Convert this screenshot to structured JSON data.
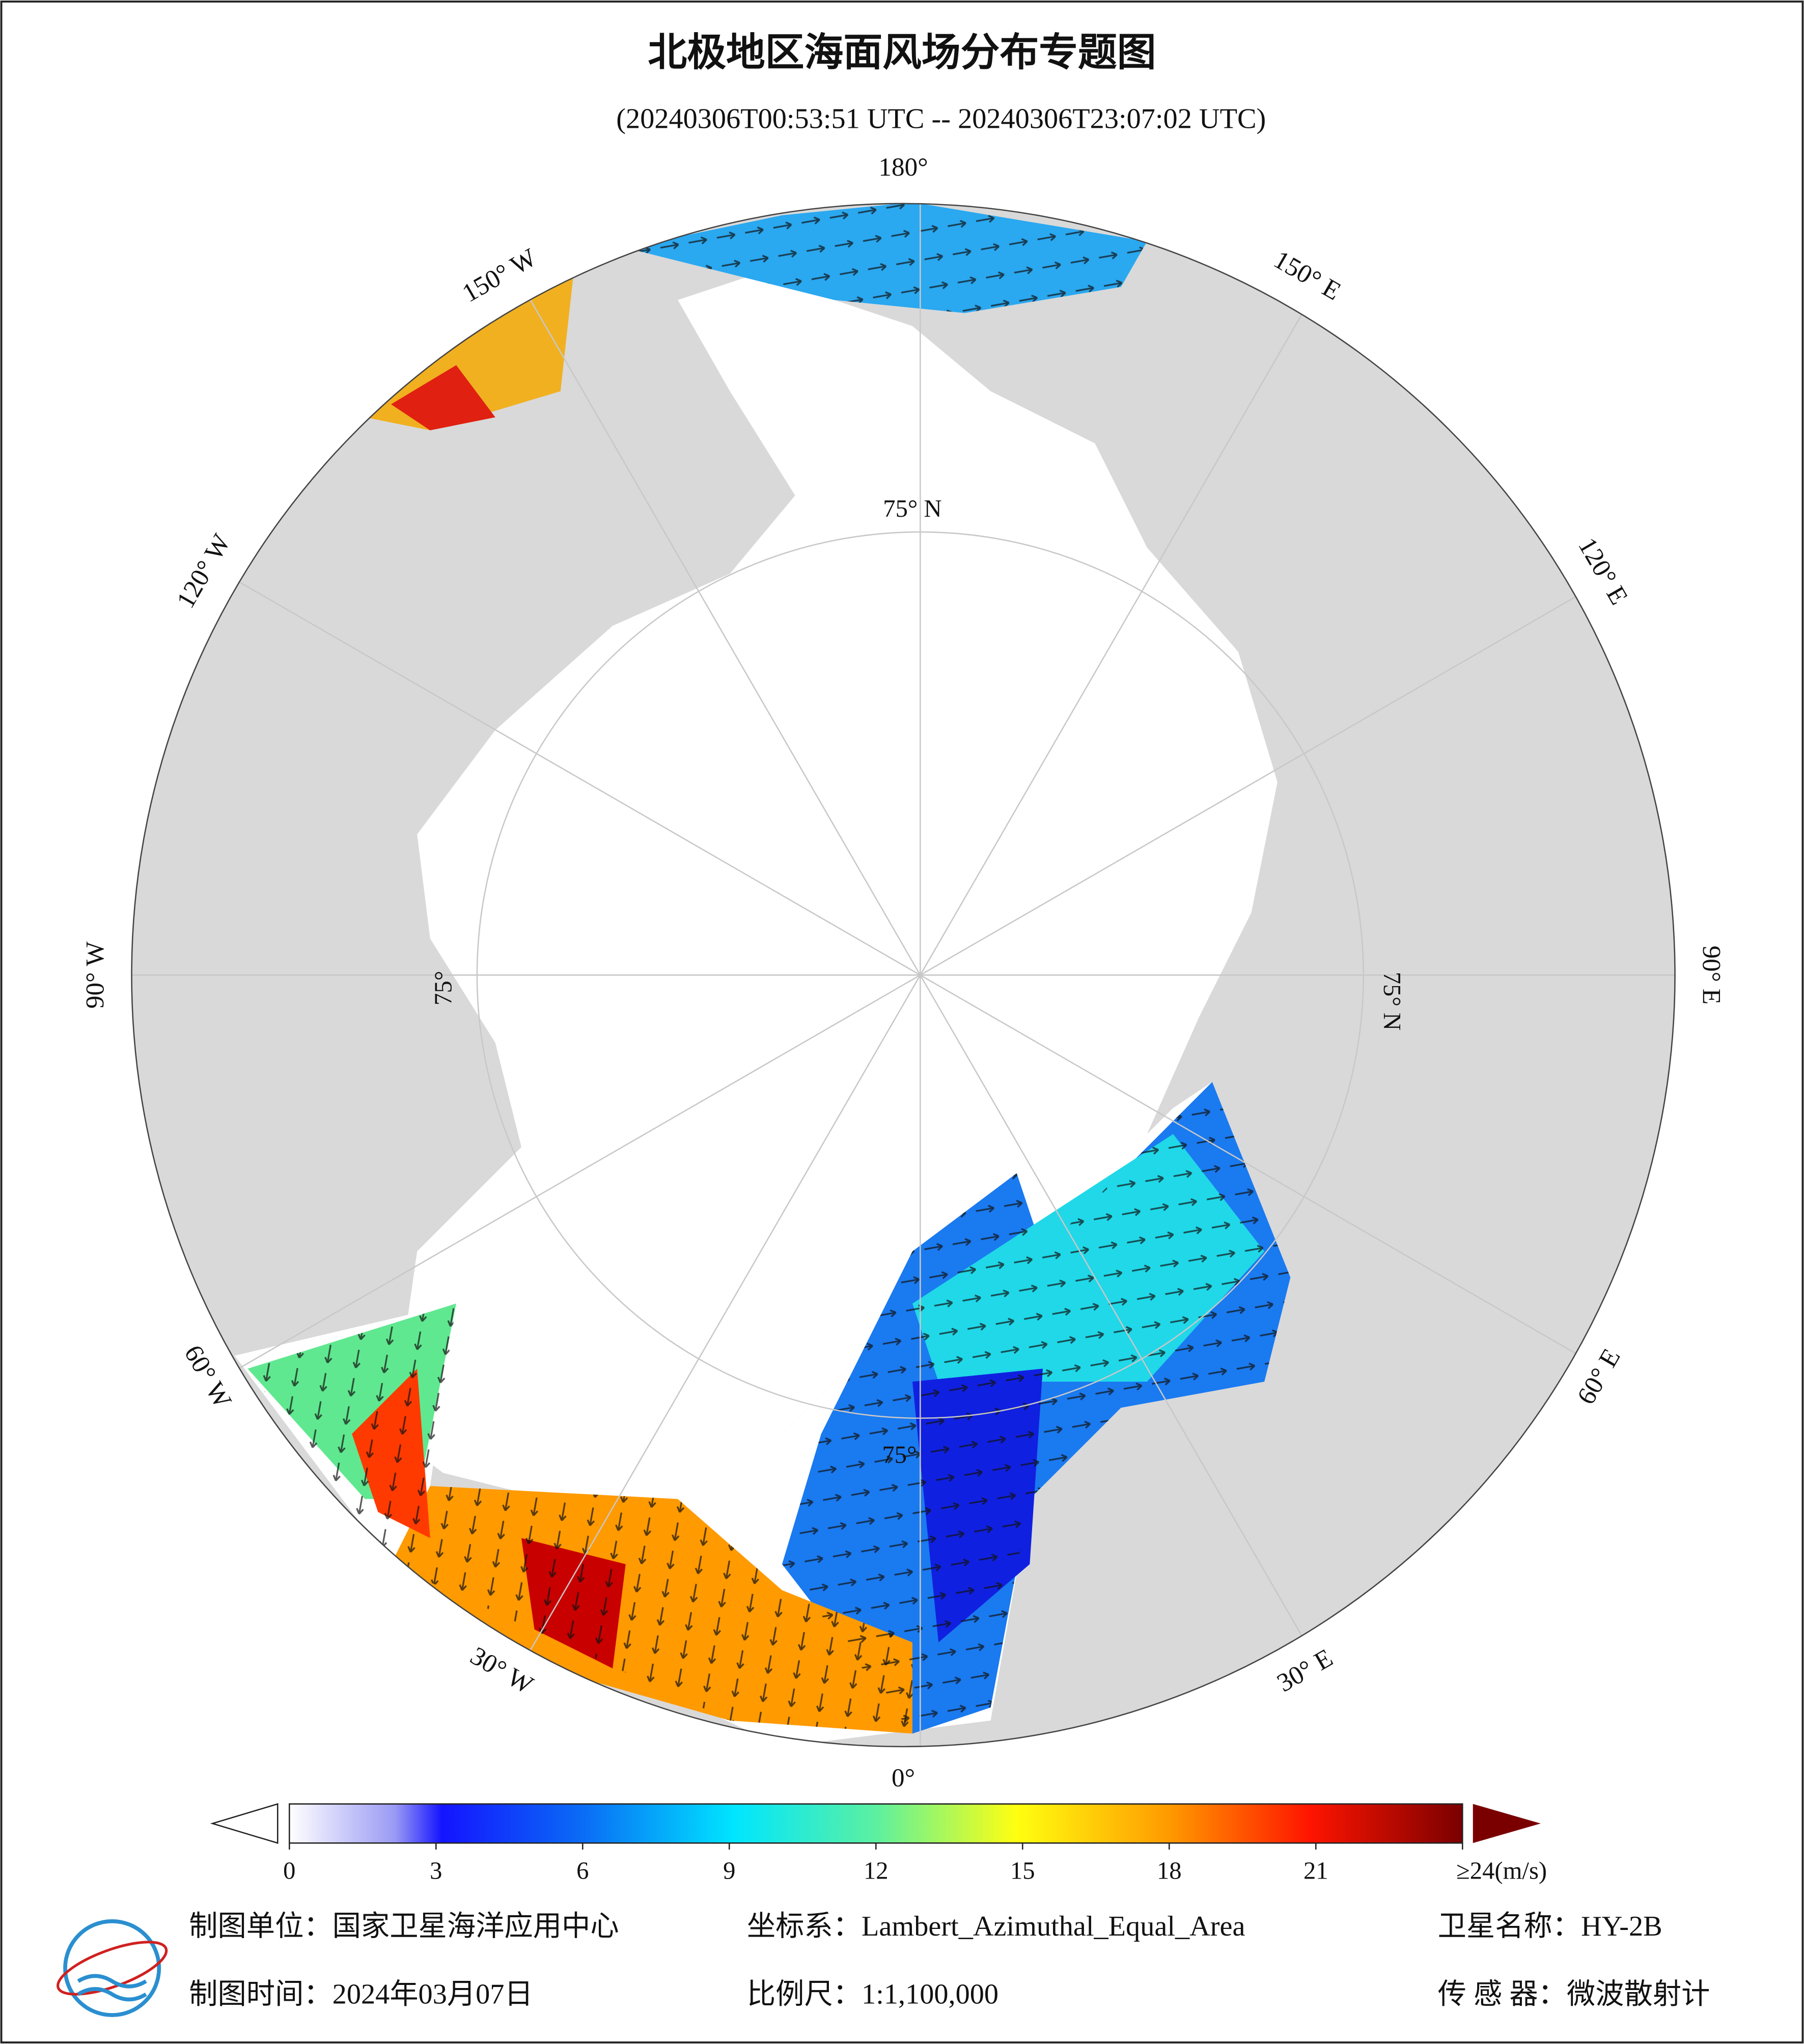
{
  "header": {
    "title": "北极地区海面风场分布专题图",
    "subtitle": "(20240306T00:53:51 UTC -- 20240306T23:07:02 UTC)"
  },
  "map": {
    "longitude_labels": [
      "180°",
      "150° E",
      "120° E",
      "90° E",
      "60° E",
      "30° E",
      "0°",
      "30° W",
      "60° W",
      "90° W",
      "120° W",
      "150° W"
    ],
    "latitude_labels": [
      "75° N",
      "75° N",
      "75°",
      "75°"
    ]
  },
  "colorbar": {
    "range": [
      0,
      24
    ],
    "ticks": [
      0,
      3,
      6,
      9,
      12,
      15,
      18,
      21,
      {
        "value": 24,
        "label": "≥24(m/s)"
      }
    ]
  },
  "footer": {
    "unit": "制图单位：国家卫星海洋应用中心",
    "projection": "坐标系：Lambert_Azimuthal_Equal_Area",
    "satellite": "卫星名称：HY-2B",
    "date": "制图时间：2024年03月07日",
    "scale": "比例尺：1:1,100,000",
    "sensor": "传 感 器：微波散射计"
  }
}
